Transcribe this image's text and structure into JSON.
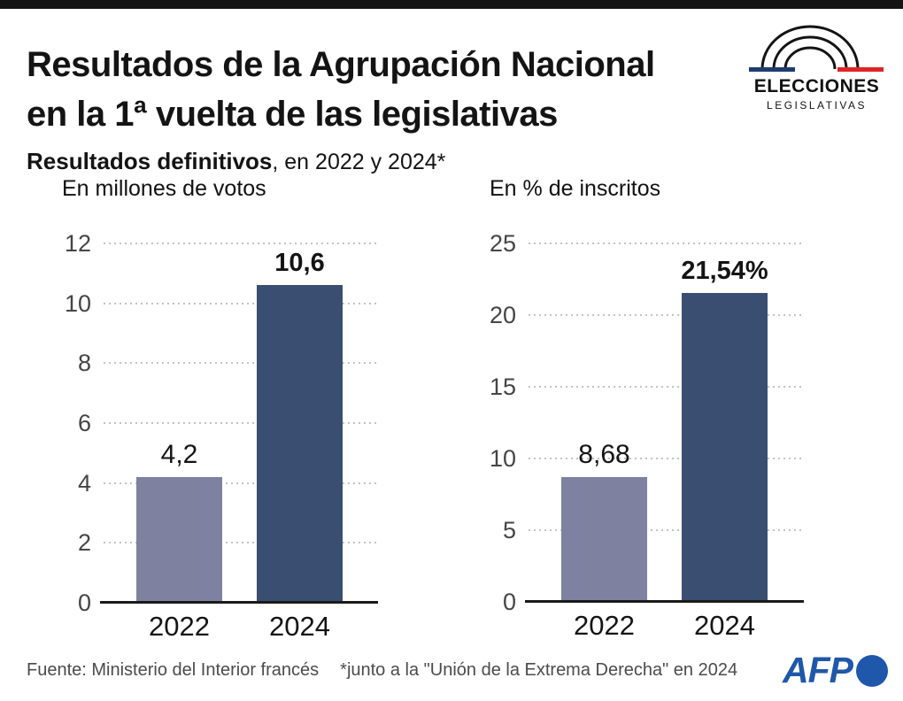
{
  "header": {
    "title_line1": "Resultados de la Agrupación Nacional",
    "title_line2": "en la 1ª vuelta de las legislativas",
    "subtitle_bold": "Resultados definitivos",
    "subtitle_rest": ", en 2022 y 2024*",
    "logo": {
      "line1": "ELECCIONES",
      "line2": "LEGISLATIVAS",
      "blue_color": "#1e3c6e",
      "red_color": "#e02428",
      "arc_color": "#141414"
    }
  },
  "chart_data": [
    {
      "type": "bar",
      "title": "En millones de votos",
      "categories": [
        "2022",
        "2024"
      ],
      "values": [
        4.2,
        10.6
      ],
      "value_labels": [
        "4,2",
        "10,6"
      ],
      "ylim": [
        0,
        12
      ],
      "yticks": [
        0,
        2,
        4,
        6,
        8,
        10,
        12
      ],
      "bar_colors": [
        "#7f81a0",
        "#3a4e71"
      ],
      "grid": "horizontal-dotted",
      "legend": "none"
    },
    {
      "type": "bar",
      "title": "En % de inscritos",
      "categories": [
        "2022",
        "2024"
      ],
      "values": [
        8.68,
        21.54
      ],
      "value_labels": [
        "8,68",
        "21,54%"
      ],
      "ylim": [
        0,
        25
      ],
      "yticks": [
        0,
        5,
        10,
        15,
        20,
        25
      ],
      "bar_colors": [
        "#7f81a0",
        "#3a4e71"
      ],
      "grid": "horizontal-dotted",
      "legend": "none"
    }
  ],
  "footer": {
    "source": "Fuente: Ministerio del Interior francés",
    "note": "*junto a la \"Unión de la Extrema Derecha\" en 2024",
    "afp_label": "AFP",
    "afp_color": "#1f57aa"
  }
}
